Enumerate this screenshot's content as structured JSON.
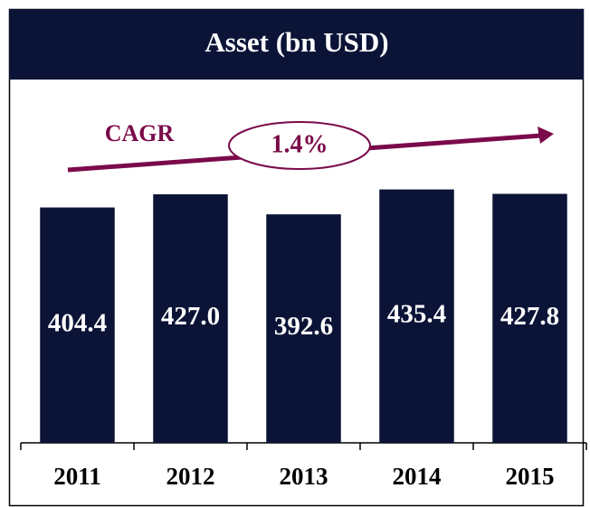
{
  "chart_data": {
    "type": "bar",
    "title": "Asset (bn USD)",
    "categories": [
      "2011",
      "2012",
      "2013",
      "2014",
      "2015"
    ],
    "values": [
      404.4,
      427.0,
      392.6,
      435.4,
      427.8
    ],
    "value_labels": [
      "404.4",
      "427.0",
      "392.6",
      "435.4",
      "427.8"
    ],
    "color": "#0b1437",
    "ylim": [
      0,
      500
    ],
    "annotations": [
      "CAGR",
      "1.4%"
    ]
  }
}
